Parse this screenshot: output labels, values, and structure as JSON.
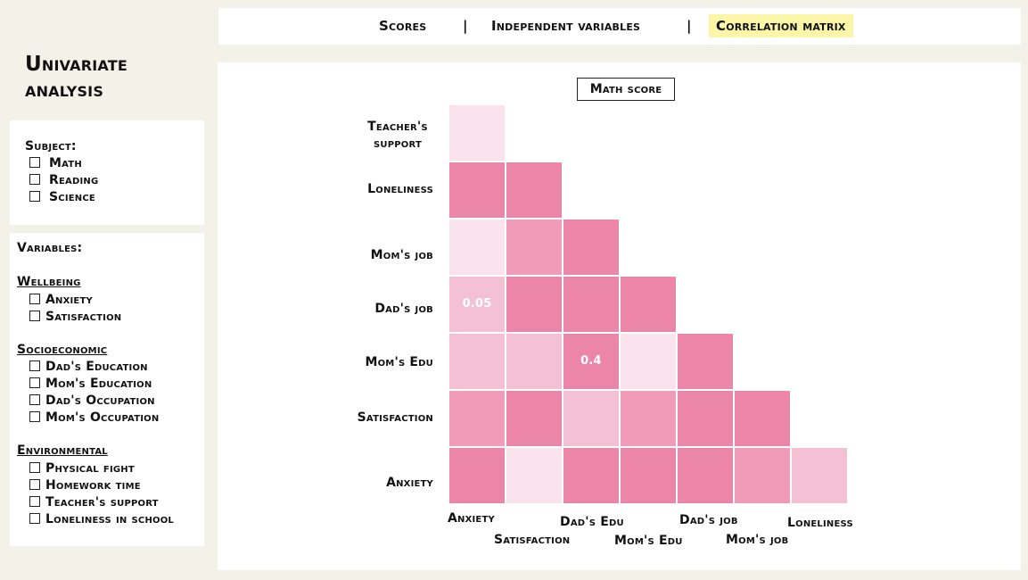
{
  "nav": {
    "tabs": [
      {
        "label": "Scores",
        "active": false
      },
      {
        "label": "Independent variables",
        "active": false
      },
      {
        "label": "Correlation matrix",
        "active": true
      }
    ],
    "separator": "|"
  },
  "sidebar": {
    "title_line1": "Univariate",
    "title_line2": "analysis",
    "subject": {
      "heading": "Subject:",
      "options": [
        {
          "label": "Math",
          "checked": false
        },
        {
          "label": "Reading",
          "checked": false
        },
        {
          "label": "Science",
          "checked": false
        }
      ]
    },
    "variables": {
      "heading": "Variables:",
      "groups": [
        {
          "title": "Wellbeing",
          "items": [
            {
              "label": "Anxiety",
              "checked": false
            },
            {
              "label": "Satisfaction",
              "checked": false
            }
          ]
        },
        {
          "title": "Socioeconomic",
          "items": [
            {
              "label": "Dad's Education",
              "checked": false
            },
            {
              "label": "Mom's Education",
              "checked": false
            },
            {
              "label": "Dad's Occupation",
              "checked": false
            },
            {
              "label": "Mom's Occupation",
              "checked": false
            }
          ]
        },
        {
          "title": "Environmental",
          "items": [
            {
              "label": "Physical fight",
              "checked": false
            },
            {
              "label": "Homework time",
              "checked": false
            },
            {
              "label": "Teacher's support",
              "checked": false
            },
            {
              "label": "Loneliness in school",
              "checked": false
            }
          ]
        }
      ]
    }
  },
  "matrix": {
    "title": "Math score",
    "row_labels": [
      "Teacher's support",
      "Loneliness",
      "Mom's job",
      "Dad's job",
      "Mom's Edu",
      "Satisfaction",
      "Anxiety"
    ],
    "col_labels": [
      "Anxiety",
      "Satisfaction",
      "Dad's Edu",
      "Mom's Edu",
      "Dad's job",
      "Mom's job",
      "Loneliness"
    ],
    "palette": {
      "strong": "#ec86a8",
      "medium": "#f09bb8",
      "light": "#f4c0d3",
      "faint": "#fae3ec"
    },
    "cells": [
      {
        "row": 0,
        "col": 0,
        "shade": "faint",
        "label": ""
      },
      {
        "row": 1,
        "col": 0,
        "shade": "strong",
        "label": ""
      },
      {
        "row": 1,
        "col": 1,
        "shade": "strong",
        "label": ""
      },
      {
        "row": 2,
        "col": 0,
        "shade": "faint",
        "label": ""
      },
      {
        "row": 2,
        "col": 1,
        "shade": "medium",
        "label": ""
      },
      {
        "row": 2,
        "col": 2,
        "shade": "strong",
        "label": ""
      },
      {
        "row": 3,
        "col": 0,
        "shade": "light",
        "label": "0.05"
      },
      {
        "row": 3,
        "col": 1,
        "shade": "strong",
        "label": ""
      },
      {
        "row": 3,
        "col": 2,
        "shade": "strong",
        "label": ""
      },
      {
        "row": 3,
        "col": 3,
        "shade": "strong",
        "label": ""
      },
      {
        "row": 4,
        "col": 0,
        "shade": "light",
        "label": ""
      },
      {
        "row": 4,
        "col": 1,
        "shade": "light",
        "label": ""
      },
      {
        "row": 4,
        "col": 2,
        "shade": "strong",
        "label": "0.4"
      },
      {
        "row": 4,
        "col": 3,
        "shade": "faint",
        "label": ""
      },
      {
        "row": 4,
        "col": 4,
        "shade": "strong",
        "label": ""
      },
      {
        "row": 5,
        "col": 0,
        "shade": "medium",
        "label": ""
      },
      {
        "row": 5,
        "col": 1,
        "shade": "strong",
        "label": ""
      },
      {
        "row": 5,
        "col": 2,
        "shade": "light",
        "label": ""
      },
      {
        "row": 5,
        "col": 3,
        "shade": "medium",
        "label": ""
      },
      {
        "row": 5,
        "col": 4,
        "shade": "strong",
        "label": ""
      },
      {
        "row": 5,
        "col": 5,
        "shade": "strong",
        "label": ""
      },
      {
        "row": 6,
        "col": 0,
        "shade": "strong",
        "label": ""
      },
      {
        "row": 6,
        "col": 1,
        "shade": "faint",
        "label": ""
      },
      {
        "row": 6,
        "col": 2,
        "shade": "strong",
        "label": ""
      },
      {
        "row": 6,
        "col": 3,
        "shade": "strong",
        "label": ""
      },
      {
        "row": 6,
        "col": 4,
        "shade": "strong",
        "label": ""
      },
      {
        "row": 6,
        "col": 5,
        "shade": "medium",
        "label": ""
      },
      {
        "row": 6,
        "col": 6,
        "shade": "light",
        "label": ""
      }
    ]
  }
}
